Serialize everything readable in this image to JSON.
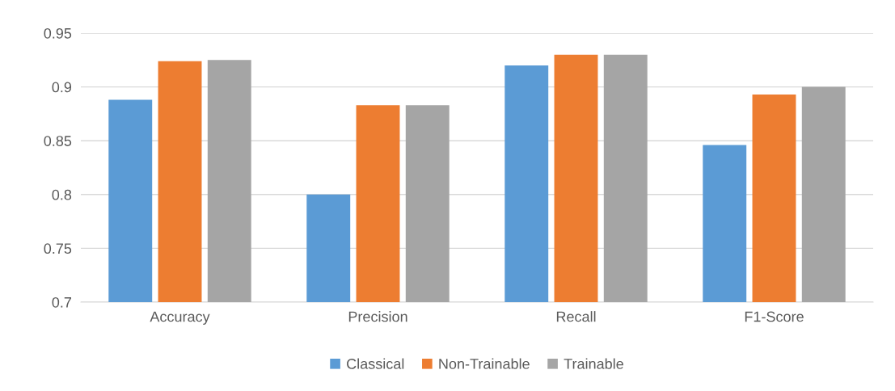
{
  "chart_data": {
    "type": "bar",
    "categories": [
      "Accuracy",
      "Precision",
      "Recall",
      "F1-Score"
    ],
    "series": [
      {
        "name": "Classical",
        "color": "#5b9bd5",
        "values": [
          0.888,
          0.8,
          0.92,
          0.846
        ]
      },
      {
        "name": "Non-Trainable",
        "color": "#ed7d31",
        "values": [
          0.924,
          0.883,
          0.93,
          0.893
        ]
      },
      {
        "name": "Trainable",
        "color": "#a5a5a5",
        "values": [
          0.925,
          0.883,
          0.93,
          0.9
        ]
      }
    ],
    "ylim": [
      0.7,
      0.95
    ],
    "yticks": [
      0.7,
      0.75,
      0.8,
      0.85,
      0.9,
      0.95
    ],
    "grid": "y",
    "legend": "bottom"
  }
}
